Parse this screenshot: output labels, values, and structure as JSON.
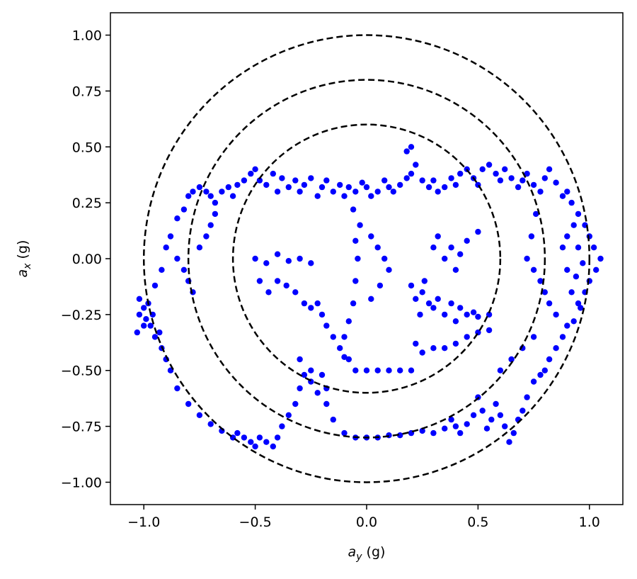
{
  "chart_data": {
    "type": "scatter",
    "title": "",
    "xlabel": {
      "base": "a",
      "sub": "y",
      "unit": " (g)"
    },
    "ylabel": {
      "base": "a",
      "sub": "x",
      "unit": " (g)"
    },
    "xlim": [
      -1.15,
      1.15
    ],
    "ylim": [
      -1.1,
      1.1
    ],
    "x_ticks": [
      -1.0,
      -0.5,
      0.0,
      0.5,
      1.0
    ],
    "x_tick_labels": [
      "−1.0",
      "−0.5",
      "0.0",
      "0.5",
      "1.0"
    ],
    "y_ticks": [
      1.0,
      0.75,
      0.5,
      0.25,
      0.0,
      -0.25,
      -0.5,
      -0.75,
      -1.0
    ],
    "y_tick_labels": [
      "1.00",
      "0.75",
      "0.50",
      "0.25",
      "0.00",
      "−0.25",
      "−0.50",
      "−0.75",
      "−1.00"
    ],
    "grid": false,
    "legend": "none",
    "reference_circles": [
      {
        "radius": 0.6,
        "style": "dashed",
        "color": "#000000"
      },
      {
        "radius": 0.8,
        "style": "dashed",
        "color": "#000000"
      },
      {
        "radius": 1.0,
        "style": "dashed",
        "color": "#000000"
      }
    ],
    "point_color": "#0000ff",
    "series": [
      {
        "points": [
          [
            -1.02,
            -0.25
          ],
          [
            -1.0,
            -0.3
          ],
          [
            -1.03,
            -0.33
          ],
          [
            -0.98,
            -0.2
          ],
          [
            -0.95,
            -0.12
          ],
          [
            -0.92,
            -0.05
          ],
          [
            -0.9,
            0.05
          ],
          [
            -0.88,
            0.1
          ],
          [
            -0.85,
            0.18
          ],
          [
            -0.82,
            0.22
          ],
          [
            -0.8,
            0.28
          ],
          [
            -0.78,
            0.3
          ],
          [
            -0.75,
            0.32
          ],
          [
            -0.72,
            0.3
          ],
          [
            -0.7,
            0.28
          ],
          [
            -0.68,
            0.25
          ],
          [
            -0.65,
            0.3
          ],
          [
            -0.62,
            0.32
          ],
          [
            -0.6,
            0.28
          ],
          [
            -0.58,
            0.33
          ],
          [
            -0.55,
            0.35
          ],
          [
            -0.52,
            0.38
          ],
          [
            -0.5,
            0.4
          ],
          [
            -0.48,
            0.35
          ],
          [
            -0.45,
            0.33
          ],
          [
            -0.42,
            0.38
          ],
          [
            -0.4,
            0.3
          ],
          [
            -0.38,
            0.36
          ],
          [
            -0.35,
            0.32
          ],
          [
            -0.32,
            0.35
          ],
          [
            -0.3,
            0.3
          ],
          [
            -0.28,
            0.33
          ],
          [
            -0.25,
            0.36
          ],
          [
            -0.22,
            0.28
          ],
          [
            -0.2,
            0.32
          ],
          [
            -0.18,
            0.35
          ],
          [
            -0.15,
            0.3
          ],
          [
            -0.12,
            0.33
          ],
          [
            -0.1,
            0.28
          ],
          [
            -0.08,
            0.32
          ],
          [
            -0.05,
            0.3
          ],
          [
            -0.02,
            0.34
          ],
          [
            0.0,
            0.32
          ],
          [
            0.02,
            0.28
          ],
          [
            0.05,
            0.3
          ],
          [
            0.08,
            0.35
          ],
          [
            0.1,
            0.32
          ],
          [
            0.12,
            0.3
          ],
          [
            0.15,
            0.33
          ],
          [
            0.18,
            0.36
          ],
          [
            0.2,
            0.38
          ],
          [
            0.22,
            0.42
          ],
          [
            0.18,
            0.48
          ],
          [
            0.2,
            0.5
          ],
          [
            0.25,
            0.35
          ],
          [
            0.28,
            0.32
          ],
          [
            0.3,
            0.35
          ],
          [
            0.32,
            0.3
          ],
          [
            0.35,
            0.32
          ],
          [
            0.38,
            0.36
          ],
          [
            0.4,
            0.33
          ],
          [
            0.42,
            0.38
          ],
          [
            0.45,
            0.4
          ],
          [
            0.48,
            0.36
          ],
          [
            0.5,
            0.33
          ],
          [
            0.52,
            0.4
          ],
          [
            0.55,
            0.42
          ],
          [
            0.58,
            0.38
          ],
          [
            0.6,
            0.35
          ],
          [
            0.62,
            0.4
          ],
          [
            0.65,
            0.36
          ],
          [
            0.68,
            0.32
          ],
          [
            0.7,
            0.35
          ],
          [
            0.72,
            0.38
          ],
          [
            0.75,
            0.33
          ],
          [
            0.78,
            0.3
          ],
          [
            0.8,
            0.36
          ],
          [
            0.82,
            0.4
          ],
          [
            0.85,
            0.34
          ],
          [
            0.88,
            0.28
          ],
          [
            0.9,
            0.3
          ],
          [
            0.92,
            0.25
          ],
          [
            0.95,
            0.2
          ],
          [
            0.98,
            0.15
          ],
          [
            1.0,
            0.1
          ],
          [
            1.02,
            0.05
          ],
          [
            1.05,
            0.0
          ],
          [
            1.03,
            -0.05
          ],
          [
            1.0,
            -0.1
          ],
          [
            0.98,
            -0.15
          ],
          [
            0.95,
            -0.2
          ],
          [
            0.92,
            -0.15
          ],
          [
            0.9,
            -0.05
          ],
          [
            0.88,
            0.05
          ],
          [
            0.9,
            0.1
          ],
          [
            0.93,
            0.15
          ],
          [
            0.95,
            0.05
          ],
          [
            0.97,
            -0.02
          ],
          [
            0.94,
            -0.08
          ],
          [
            0.96,
            -0.22
          ],
          [
            0.93,
            -0.28
          ],
          [
            0.9,
            -0.3
          ],
          [
            0.88,
            -0.35
          ],
          [
            0.85,
            -0.4
          ],
          [
            0.82,
            -0.45
          ],
          [
            0.8,
            -0.5
          ],
          [
            0.78,
            -0.52
          ],
          [
            0.75,
            -0.55
          ],
          [
            0.72,
            -0.62
          ],
          [
            0.7,
            -0.68
          ],
          [
            0.68,
            -0.72
          ],
          [
            0.66,
            -0.78
          ],
          [
            0.64,
            -0.82
          ],
          [
            0.62,
            -0.75
          ],
          [
            0.6,
            -0.7
          ],
          [
            0.58,
            -0.65
          ],
          [
            0.56,
            -0.72
          ],
          [
            0.54,
            -0.76
          ],
          [
            0.52,
            -0.68
          ],
          [
            0.5,
            -0.62
          ],
          [
            0.48,
            -0.7
          ],
          [
            0.45,
            -0.74
          ],
          [
            0.42,
            -0.78
          ],
          [
            0.4,
            -0.75
          ],
          [
            0.38,
            -0.72
          ],
          [
            0.35,
            -0.76
          ],
          [
            0.3,
            -0.78
          ],
          [
            0.25,
            -0.77
          ],
          [
            0.2,
            -0.78
          ],
          [
            0.15,
            -0.79
          ],
          [
            0.1,
            -0.79
          ],
          [
            0.05,
            -0.8
          ],
          [
            0.0,
            -0.8
          ],
          [
            -0.05,
            -0.8
          ],
          [
            -0.1,
            -0.78
          ],
          [
            -0.15,
            -0.72
          ],
          [
            -0.18,
            -0.65
          ],
          [
            -0.22,
            -0.6
          ],
          [
            -0.25,
            -0.55
          ],
          [
            -0.28,
            -0.52
          ],
          [
            -0.3,
            -0.58
          ],
          [
            -0.32,
            -0.65
          ],
          [
            -0.35,
            -0.7
          ],
          [
            -0.38,
            -0.75
          ],
          [
            -0.4,
            -0.8
          ],
          [
            -0.42,
            -0.84
          ],
          [
            -0.45,
            -0.82
          ],
          [
            -0.48,
            -0.8
          ],
          [
            -0.5,
            -0.84
          ],
          [
            -0.52,
            -0.82
          ],
          [
            -0.55,
            -0.8
          ],
          [
            -0.58,
            -0.78
          ],
          [
            -0.6,
            -0.8
          ],
          [
            -0.65,
            -0.77
          ],
          [
            -0.7,
            -0.74
          ],
          [
            -0.75,
            -0.7
          ],
          [
            -0.8,
            -0.65
          ],
          [
            -0.85,
            -0.58
          ],
          [
            -0.88,
            -0.5
          ],
          [
            -0.9,
            -0.45
          ],
          [
            -0.92,
            -0.4
          ],
          [
            -0.95,
            -0.35
          ],
          [
            -0.97,
            -0.3
          ],
          [
            -0.99,
            -0.27
          ],
          [
            -1.0,
            -0.22
          ],
          [
            -1.02,
            -0.18
          ],
          [
            -0.96,
            -0.25
          ],
          [
            -0.93,
            -0.33
          ],
          [
            -0.5,
            0.0
          ],
          [
            -0.45,
            -0.02
          ],
          [
            -0.4,
            0.02
          ],
          [
            -0.35,
            -0.01
          ],
          [
            -0.3,
            0.0
          ],
          [
            -0.25,
            -0.02
          ],
          [
            -0.48,
            -0.1
          ],
          [
            -0.44,
            -0.15
          ],
          [
            -0.4,
            -0.1
          ],
          [
            -0.36,
            -0.12
          ],
          [
            -0.32,
            -0.15
          ],
          [
            -0.28,
            -0.2
          ],
          [
            -0.25,
            -0.22
          ],
          [
            -0.22,
            -0.2
          ],
          [
            -0.2,
            -0.25
          ],
          [
            -0.18,
            -0.3
          ],
          [
            -0.15,
            -0.35
          ],
          [
            -0.12,
            -0.4
          ],
          [
            -0.1,
            -0.44
          ],
          [
            -0.08,
            -0.45
          ],
          [
            -0.05,
            -0.5
          ],
          [
            0.0,
            -0.5
          ],
          [
            0.05,
            -0.5
          ],
          [
            0.1,
            -0.5
          ],
          [
            0.15,
            -0.5
          ],
          [
            0.2,
            -0.5
          ],
          [
            -0.06,
            -0.2
          ],
          [
            -0.05,
            -0.1
          ],
          [
            -0.04,
            0.0
          ],
          [
            -0.05,
            0.08
          ],
          [
            -0.03,
            0.15
          ],
          [
            -0.06,
            0.22
          ],
          [
            0.02,
            0.1
          ],
          [
            0.05,
            0.05
          ],
          [
            0.08,
            0.0
          ],
          [
            0.1,
            -0.05
          ],
          [
            0.06,
            -0.12
          ],
          [
            0.02,
            -0.18
          ],
          [
            -0.08,
            -0.28
          ],
          [
            -0.1,
            -0.35
          ],
          [
            0.2,
            -0.12
          ],
          [
            0.22,
            -0.18
          ],
          [
            0.25,
            -0.15
          ],
          [
            0.28,
            -0.2
          ],
          [
            0.3,
            -0.22
          ],
          [
            0.32,
            -0.18
          ],
          [
            0.26,
            -0.1
          ],
          [
            0.24,
            -0.25
          ],
          [
            0.35,
            -0.25
          ],
          [
            0.38,
            -0.2
          ],
          [
            0.4,
            -0.28
          ],
          [
            0.42,
            -0.22
          ],
          [
            0.45,
            -0.25
          ],
          [
            0.48,
            -0.24
          ],
          [
            0.5,
            -0.26
          ],
          [
            0.55,
            -0.25
          ],
          [
            0.3,
            0.05
          ],
          [
            0.32,
            0.1
          ],
          [
            0.35,
            0.0
          ],
          [
            0.38,
            0.05
          ],
          [
            0.4,
            -0.05
          ],
          [
            0.42,
            0.02
          ],
          [
            0.45,
            0.08
          ],
          [
            0.5,
            0.12
          ],
          [
            0.22,
            -0.38
          ],
          [
            0.25,
            -0.42
          ],
          [
            0.3,
            -0.4
          ],
          [
            0.35,
            -0.4
          ],
          [
            0.4,
            -0.38
          ],
          [
            0.45,
            -0.35
          ],
          [
            0.5,
            -0.33
          ],
          [
            0.55,
            -0.32
          ],
          [
            -0.3,
            -0.45
          ],
          [
            -0.25,
            -0.5
          ],
          [
            -0.2,
            -0.52
          ],
          [
            -0.18,
            -0.58
          ],
          [
            0.6,
            -0.5
          ],
          [
            0.65,
            -0.45
          ],
          [
            0.7,
            -0.4
          ],
          [
            0.75,
            -0.35
          ],
          [
            -0.85,
            0.0
          ],
          [
            -0.82,
            -0.05
          ],
          [
            -0.8,
            -0.1
          ],
          [
            -0.78,
            -0.15
          ],
          [
            -0.75,
            0.05
          ],
          [
            -0.72,
            0.1
          ],
          [
            -0.7,
            0.15
          ],
          [
            -0.68,
            0.2
          ],
          [
            0.85,
            -0.25
          ],
          [
            0.82,
            -0.2
          ],
          [
            0.8,
            -0.15
          ],
          [
            0.78,
            -0.1
          ],
          [
            0.75,
            -0.05
          ],
          [
            0.72,
            0.0
          ],
          [
            0.74,
            0.1
          ],
          [
            0.76,
            0.2
          ]
        ]
      }
    ]
  }
}
